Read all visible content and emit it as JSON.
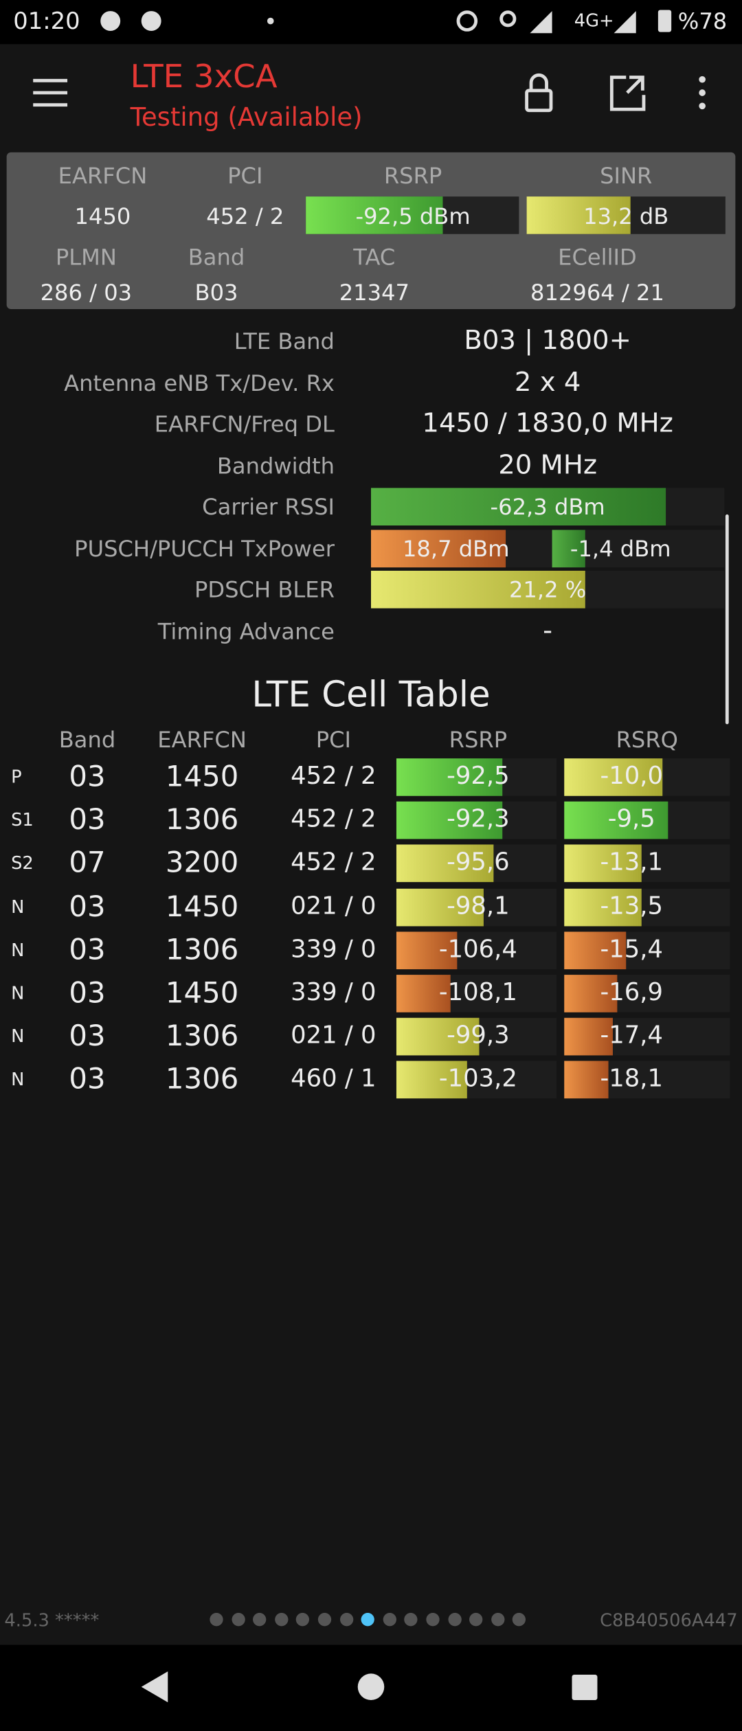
{
  "status_bar": {
    "time": "01:20",
    "network": "4G+",
    "battery": "%78"
  },
  "header": {
    "title": "LTE 3xCA",
    "subtitle": "Testing (Available)"
  },
  "summary": {
    "labels1": [
      "EARFCN",
      "PCI",
      "RSRP",
      "SINR"
    ],
    "values1": [
      "1450",
      "452 / 2",
      "-92,5 dBm",
      "13,2 dB"
    ],
    "labels2": [
      "PLMN",
      "Band",
      "TAC",
      "ECellID"
    ],
    "values2": [
      "286 / 03",
      "B03",
      "21347",
      "812964 / 21"
    ]
  },
  "details": [
    {
      "label": "LTE Band",
      "value": "B03 | 1800+"
    },
    {
      "label": "Antenna eNB Tx/Dev. Rx",
      "value": "2 x 4"
    },
    {
      "label": "EARFCN/Freq DL",
      "value": "1450 / 1830,0 MHz"
    },
    {
      "label": "Bandwidth",
      "value": "20 MHz"
    },
    {
      "label": "Carrier RSSI",
      "value": "-62,3 dBm"
    },
    {
      "label": "PUSCH/PUCCH TxPower",
      "value": "18,7 dBm",
      "value2": "-1,4 dBm"
    },
    {
      "label": "PDSCH BLER",
      "value": "21,2 %"
    },
    {
      "label": "Timing Advance",
      "value": "-"
    }
  ],
  "cell_table": {
    "title": "LTE Cell Table",
    "columns": [
      "Band",
      "EARFCN",
      "PCI",
      "RSRP",
      "RSRQ"
    ],
    "rows": [
      [
        "P",
        "03",
        "1450",
        "452 / 2",
        "-92,5",
        "-10,0"
      ],
      [
        "S1",
        "03",
        "1306",
        "452 / 2",
        "-92,3",
        "-9,5"
      ],
      [
        "S2",
        "07",
        "3200",
        "452 / 2",
        "-95,6",
        "-13,1"
      ],
      [
        "N",
        "03",
        "1450",
        "021 / 0",
        "-98,1",
        "-13,5"
      ],
      [
        "N",
        "03",
        "1306",
        "339 / 0",
        "-106,4",
        "-15,4"
      ],
      [
        "N",
        "03",
        "1450",
        "339 / 0",
        "-108,1",
        "-16,9"
      ],
      [
        "N",
        "03",
        "1306",
        "021 / 0",
        "-99,3",
        "-17,4"
      ],
      [
        "N",
        "03",
        "1306",
        "460 / 1",
        "-103,2",
        "-18,1"
      ]
    ]
  },
  "footer": {
    "version": "4.5.3 *****",
    "device_id": "C8B40506A447"
  }
}
